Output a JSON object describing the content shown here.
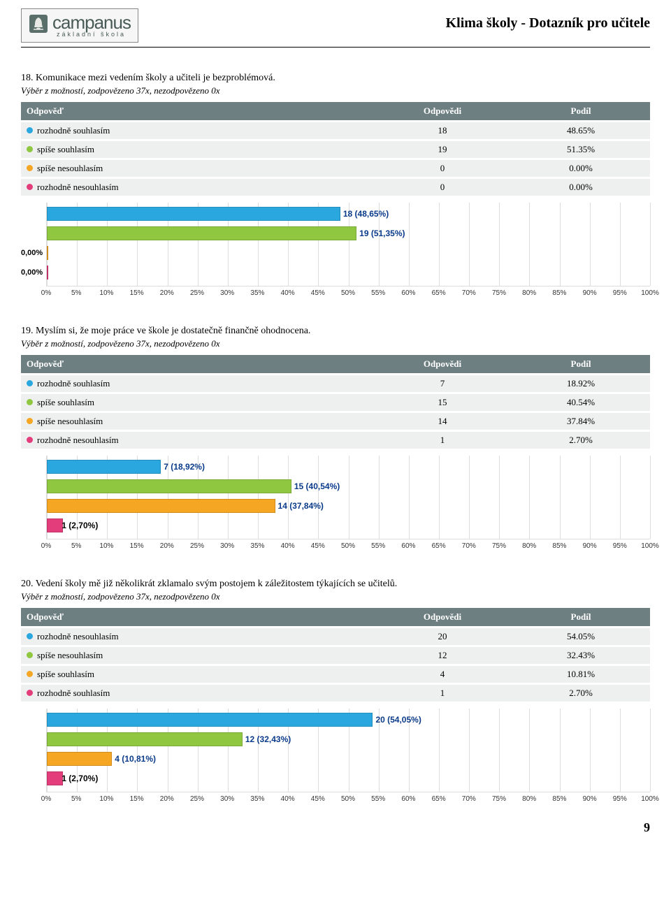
{
  "header": {
    "logo_main": "campanus",
    "logo_sub": "základní   škola",
    "title": "Klima školy - Dotazník pro učitele"
  },
  "table_headers": {
    "answer": "Odpověď",
    "count": "Odpovědi",
    "share": "Podíl"
  },
  "dot_colors": [
    "#2aa7df",
    "#8fc740",
    "#f5a623",
    "#e33d7b"
  ],
  "bar_colors": [
    "#2aa7df",
    "#8fc740",
    "#f5a623",
    "#e33d7b"
  ],
  "x_ticks": [
    "0%",
    "5%",
    "10%",
    "15%",
    "20%",
    "25%",
    "30%",
    "35%",
    "40%",
    "45%",
    "50%",
    "55%",
    "60%",
    "65%",
    "70%",
    "75%",
    "80%",
    "85%",
    "90%",
    "95%",
    "100%"
  ],
  "questions": [
    {
      "number": "18.",
      "title": "Komunikace mezi vedením školy a učiteli je bezproblémová.",
      "sub": "Výběr z možností, zodpovězeno 37x, nezodpovězeno 0x",
      "rows": [
        {
          "label": "rozhodně souhlasím",
          "count": "18",
          "share": "48.65%",
          "pct": 48.65,
          "bar_label": "18 (48,65%)"
        },
        {
          "label": "spíše souhlasím",
          "count": "19",
          "share": "51.35%",
          "pct": 51.35,
          "bar_label": "19 (51,35%)"
        },
        {
          "label": "spíše nesouhlasím",
          "count": "0",
          "share": "0.00%",
          "pct": 0,
          "bar_label": "0,00%",
          "zero": true
        },
        {
          "label": "rozhodně nesouhlasím",
          "count": "0",
          "share": "0.00%",
          "pct": 0,
          "bar_label": "0,00%",
          "zero": true
        }
      ]
    },
    {
      "number": "19.",
      "title": "Myslím si, že moje práce ve škole je dostatečně finančně ohodnocena.",
      "sub": "Výběr z možností, zodpovězeno 37x, nezodpovězeno 0x",
      "rows": [
        {
          "label": "rozhodně souhlasím",
          "count": "7",
          "share": "18.92%",
          "pct": 18.92,
          "bar_label": "7 (18,92%)"
        },
        {
          "label": "spíše souhlasím",
          "count": "15",
          "share": "40.54%",
          "pct": 40.54,
          "bar_label": "15 (40,54%)"
        },
        {
          "label": "spíše nesouhlasím",
          "count": "14",
          "share": "37.84%",
          "pct": 37.84,
          "bar_label": "14 (37,84%)"
        },
        {
          "label": "rozhodně nesouhlasím",
          "count": "1",
          "share": "2.70%",
          "pct": 2.7,
          "bar_label": "1 (2,70%)"
        }
      ]
    },
    {
      "number": "20.",
      "title": "Vedení školy mě již několikrát zklamalo svým postojem k záležitostem týkajících se učitelů.",
      "sub": "Výběr z možností, zodpovězeno 37x, nezodpovězeno 0x",
      "rows": [
        {
          "label": "rozhodně nesouhlasím",
          "count": "20",
          "share": "54.05%",
          "pct": 54.05,
          "bar_label": "20 (54,05%)"
        },
        {
          "label": "spíše nesouhlasím",
          "count": "12",
          "share": "32.43%",
          "pct": 32.43,
          "bar_label": "12 (32,43%)"
        },
        {
          "label": "spíše souhlasím",
          "count": "4",
          "share": "10.81%",
          "pct": 10.81,
          "bar_label": "4 (10,81%)"
        },
        {
          "label": "rozhodně souhlasím",
          "count": "1",
          "share": "2.70%",
          "pct": 2.7,
          "bar_label": "1 (2,70%)"
        }
      ]
    }
  ],
  "page_number": "9"
}
